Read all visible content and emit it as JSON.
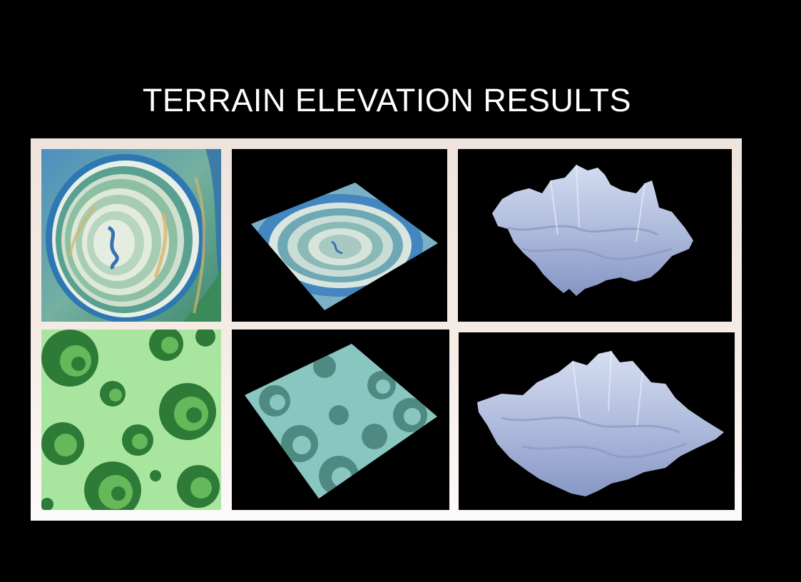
{
  "slide": {
    "title": "TERRAIN ELEVATION RESULTS"
  },
  "grid": {
    "rows": [
      {
        "name": "agate-texture",
        "panels": [
          "texture-map",
          "texture-on-plane",
          "elevation-surface"
        ]
      },
      {
        "name": "swirl-texture",
        "panels": [
          "texture-map",
          "texture-on-plane",
          "elevation-surface"
        ]
      }
    ]
  },
  "colors": {
    "background": "#000000",
    "frame": "#f2e8e1",
    "title": "#ffffff",
    "agate_blue": "#3f86bf",
    "agate_green": "#6fa88a",
    "agate_cream": "#dfe6d4",
    "agate_gold": "#d9b46a",
    "swirl_light": "#a8e6a0",
    "swirl_dark": "#2f7d3a",
    "surface": "#a9b8d9"
  }
}
